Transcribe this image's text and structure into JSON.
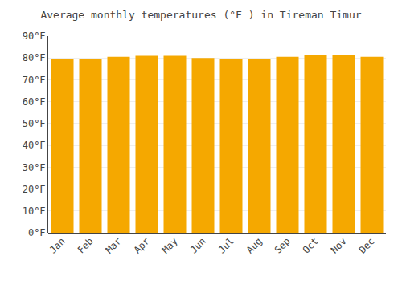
{
  "chart_data": {
    "type": "bar",
    "title": "Average monthly temperatures (°F ) in Tireman Timur",
    "categories": [
      "Jan",
      "Feb",
      "Mar",
      "Apr",
      "May",
      "Jun",
      "Jul",
      "Aug",
      "Sep",
      "Oct",
      "Nov",
      "Dec"
    ],
    "values": [
      79.5,
      79.5,
      80.5,
      81.0,
      81.0,
      80.0,
      79.5,
      79.5,
      80.5,
      81.5,
      81.5,
      80.5
    ],
    "color": "#F5A800",
    "ylim": [
      0,
      90
    ],
    "yticks": [
      {
        "value": 0,
        "label": "0°F"
      },
      {
        "value": 10,
        "label": "10°F"
      },
      {
        "value": 20,
        "label": "20°F"
      },
      {
        "value": 30,
        "label": "30°F"
      },
      {
        "value": 40,
        "label": "40°F"
      },
      {
        "value": 50,
        "label": "50°F"
      },
      {
        "value": 60,
        "label": "60°F"
      },
      {
        "value": 70,
        "label": "70°F"
      },
      {
        "value": 80,
        "label": "80°F"
      },
      {
        "value": 90,
        "label": "90°F"
      }
    ],
    "grid": true
  }
}
